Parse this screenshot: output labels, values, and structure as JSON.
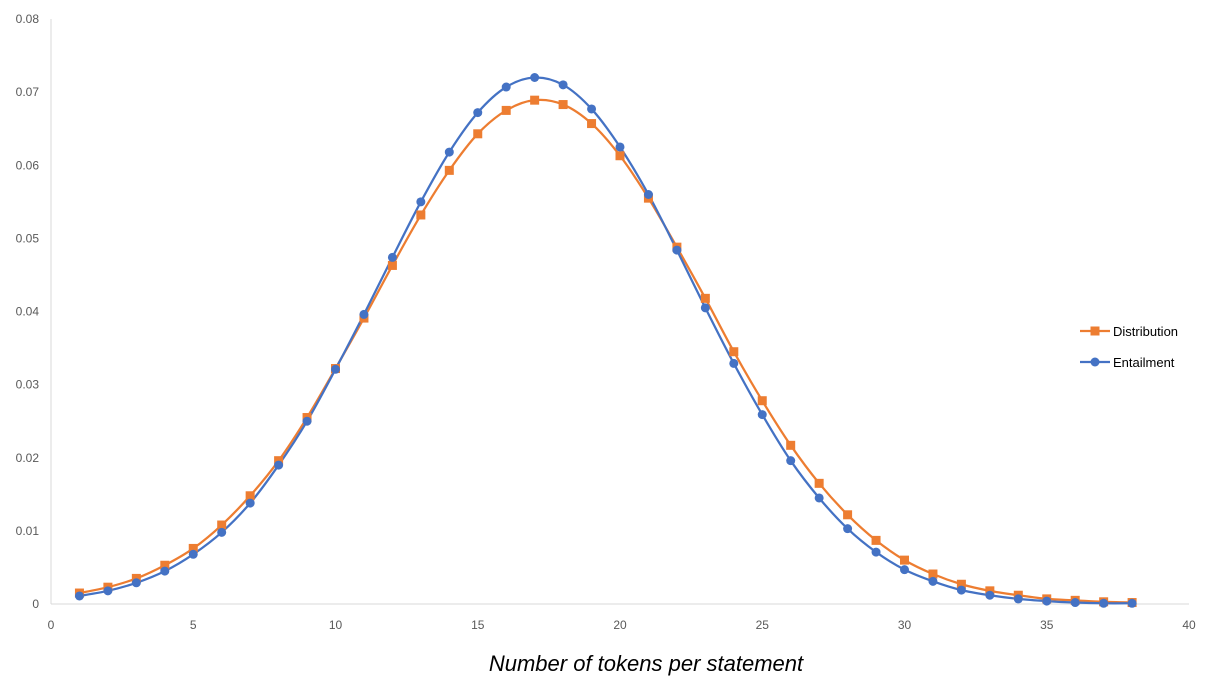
{
  "chart_data": {
    "type": "line",
    "title": "",
    "xlabel": "Number of tokens per statement",
    "ylabel": "",
    "xlim": [
      0,
      40
    ],
    "ylim": [
      0,
      0.08
    ],
    "x_ticks": [
      "0",
      "5",
      "10",
      "15",
      "20",
      "25",
      "30",
      "35",
      "40"
    ],
    "y_ticks": [
      "0",
      "0.01",
      "0.02",
      "0.03",
      "0.04",
      "0.05",
      "0.06",
      "0.07",
      "0.08"
    ],
    "grid": false,
    "smooth": true,
    "legend_position": "right",
    "x": [
      1,
      2,
      3,
      4,
      5,
      6,
      7,
      8,
      9,
      10,
      11,
      12,
      13,
      14,
      15,
      16,
      17,
      18,
      19,
      20,
      21,
      22,
      23,
      24,
      25,
      26,
      27,
      28,
      29,
      30,
      31,
      32,
      33,
      34,
      35,
      36,
      37,
      38
    ],
    "series": [
      {
        "name": "Distribution",
        "color": "#ED7D31",
        "marker": "square",
        "values": [
          0.0015,
          0.0023,
          0.0035,
          0.0053,
          0.0076,
          0.0108,
          0.0148,
          0.0196,
          0.0255,
          0.0322,
          0.0391,
          0.0463,
          0.0532,
          0.0593,
          0.0643,
          0.0675,
          0.0689,
          0.0683,
          0.0657,
          0.0613,
          0.0555,
          0.0488,
          0.0418,
          0.0345,
          0.0278,
          0.0217,
          0.0165,
          0.0122,
          0.0087,
          0.006,
          0.0041,
          0.0027,
          0.0018,
          0.0012,
          0.0007,
          0.0005,
          0.0003,
          0.0002
        ]
      },
      {
        "name": "Entailment",
        "color": "#4472C4",
        "marker": "circle",
        "values": [
          0.0011,
          0.0018,
          0.0029,
          0.0045,
          0.0068,
          0.0098,
          0.0138,
          0.019,
          0.025,
          0.0321,
          0.0396,
          0.0474,
          0.055,
          0.0618,
          0.0672,
          0.0707,
          0.072,
          0.071,
          0.0677,
          0.0625,
          0.056,
          0.0484,
          0.0405,
          0.0329,
          0.0259,
          0.0196,
          0.0145,
          0.0103,
          0.0071,
          0.0047,
          0.0031,
          0.0019,
          0.0012,
          0.0007,
          0.0004,
          0.0002,
          0.0001,
          0.0001
        ]
      }
    ]
  }
}
